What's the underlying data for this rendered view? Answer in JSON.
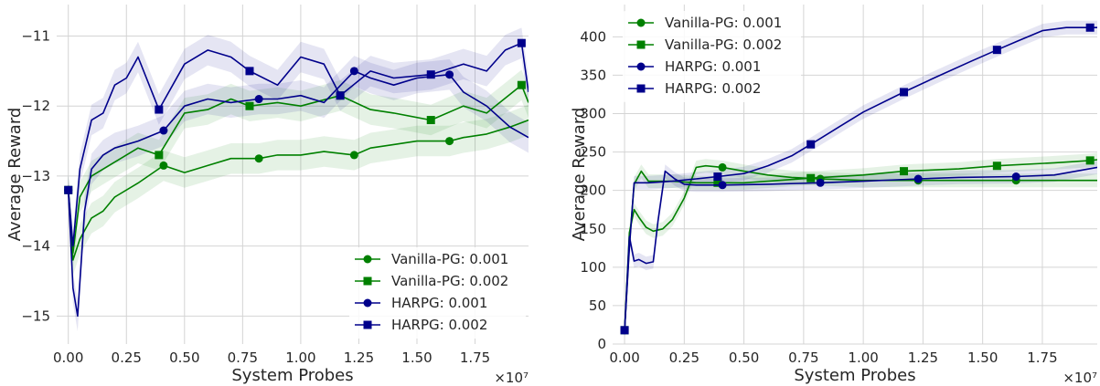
{
  "chart_data": [
    {
      "type": "line",
      "xlabel": "System Probes",
      "ylabel": "Average Reward",
      "x_offset_label": "×10⁷",
      "xlim": [
        -0.05,
        1.98
      ],
      "ylim": [
        -15.4,
        -10.55
      ],
      "xticks": [
        "0.00",
        "0.25",
        "0.50",
        "0.75",
        "1.00",
        "1.25",
        "1.50",
        "1.75"
      ],
      "yticks": [
        "−15",
        "−14",
        "−13",
        "−12",
        "−11"
      ],
      "grid": true,
      "legend_position": "lower-right",
      "series": [
        {
          "name": "Vanilla-PG: 0.001",
          "color": "#008000",
          "marker": "circle",
          "x": [
            0.0,
            0.02,
            0.05,
            0.1,
            0.15,
            0.2,
            0.3,
            0.41,
            0.5,
            0.6,
            0.7,
            0.82,
            0.9,
            1.0,
            1.1,
            1.23,
            1.3,
            1.4,
            1.5,
            1.64,
            1.7,
            1.8,
            1.9,
            1.98
          ],
          "y": [
            -13.2,
            -14.2,
            -13.9,
            -13.6,
            -13.5,
            -13.3,
            -13.1,
            -12.85,
            -12.95,
            -12.85,
            -12.75,
            -12.75,
            -12.7,
            -12.7,
            -12.65,
            -12.7,
            -12.6,
            -12.55,
            -12.5,
            -12.5,
            -12.45,
            -12.4,
            -12.3,
            -12.2
          ],
          "markers_x": [
            0.41,
            0.82,
            1.23,
            1.64
          ],
          "markers_y": [
            -12.85,
            -12.75,
            -12.7,
            -12.5
          ]
        },
        {
          "name": "Vanilla-PG: 0.002",
          "color": "#008000",
          "marker": "square",
          "x": [
            0.0,
            0.02,
            0.05,
            0.1,
            0.2,
            0.3,
            0.39,
            0.5,
            0.6,
            0.7,
            0.78,
            0.9,
            1.0,
            1.17,
            1.3,
            1.4,
            1.56,
            1.7,
            1.8,
            1.95,
            1.98
          ],
          "y": [
            -13.2,
            -14.1,
            -13.3,
            -13.0,
            -12.8,
            -12.6,
            -12.7,
            -12.1,
            -12.05,
            -11.9,
            -12.0,
            -11.95,
            -12.0,
            -11.85,
            -12.05,
            -12.1,
            -12.2,
            -12.0,
            -12.1,
            -11.7,
            -11.95
          ],
          "markers_x": [
            0.39,
            0.78,
            1.17,
            1.56,
            1.95
          ],
          "markers_y": [
            -12.7,
            -12.0,
            -11.85,
            -12.2,
            -11.7
          ]
        },
        {
          "name": "HARPG: 0.001",
          "color": "#00008b",
          "marker": "circle",
          "x": [
            0.0,
            0.02,
            0.04,
            0.07,
            0.1,
            0.15,
            0.2,
            0.3,
            0.41,
            0.5,
            0.6,
            0.7,
            0.82,
            0.9,
            1.0,
            1.1,
            1.23,
            1.3,
            1.4,
            1.5,
            1.64,
            1.7,
            1.8,
            1.9,
            1.98
          ],
          "y": [
            -13.2,
            -14.6,
            -15.0,
            -13.5,
            -12.9,
            -12.7,
            -12.6,
            -12.5,
            -12.35,
            -12.0,
            -11.9,
            -11.95,
            -11.9,
            -11.9,
            -11.85,
            -11.95,
            -11.5,
            -11.6,
            -11.7,
            -11.6,
            -11.55,
            -11.8,
            -12.0,
            -12.3,
            -12.45
          ],
          "markers_x": [
            0.41,
            0.82,
            1.23,
            1.64
          ],
          "markers_y": [
            -12.35,
            -11.9,
            -11.5,
            -11.55
          ]
        },
        {
          "name": "HARPG: 0.002",
          "color": "#00008b",
          "marker": "square",
          "x": [
            0.0,
            0.02,
            0.05,
            0.1,
            0.15,
            0.2,
            0.25,
            0.3,
            0.39,
            0.5,
            0.6,
            0.7,
            0.78,
            0.9,
            1.0,
            1.1,
            1.17,
            1.3,
            1.4,
            1.56,
            1.7,
            1.8,
            1.88,
            1.95,
            1.98
          ],
          "y": [
            -13.2,
            -14.0,
            -12.9,
            -12.2,
            -12.1,
            -11.7,
            -11.6,
            -11.3,
            -12.05,
            -11.4,
            -11.2,
            -11.3,
            -11.5,
            -11.7,
            -11.3,
            -11.4,
            -11.85,
            -11.5,
            -11.6,
            -11.55,
            -11.4,
            -11.5,
            -11.2,
            -11.1,
            -11.8
          ],
          "markers_x": [
            0.39,
            0.78,
            1.17,
            1.56,
            1.95
          ],
          "markers_y": [
            -12.05,
            -11.5,
            -11.85,
            -11.55,
            -11.1
          ]
        }
      ]
    },
    {
      "type": "line",
      "xlabel": "System Probes",
      "ylabel": "Average Reward",
      "x_offset_label": "×10⁷",
      "xlim": [
        -0.05,
        1.98
      ],
      "ylim": [
        0,
        442
      ],
      "xticks": [
        "0.00",
        "0.25",
        "0.50",
        "0.75",
        "1.00",
        "1.25",
        "1.50",
        "1.75"
      ],
      "yticks": [
        "0",
        "50",
        "100",
        "150",
        "200",
        "250",
        "300",
        "350",
        "400"
      ],
      "grid": true,
      "legend_position": "top-left",
      "series": [
        {
          "name": "Vanilla-PG: 0.001",
          "color": "#008000",
          "marker": "circle",
          "x": [
            0.0,
            0.02,
            0.04,
            0.06,
            0.09,
            0.12,
            0.16,
            0.2,
            0.25,
            0.3,
            0.34,
            0.41,
            0.5,
            0.6,
            0.7,
            0.82,
            1.0,
            1.23,
            1.4,
            1.64,
            1.8,
            1.98
          ],
          "y": [
            18,
            145,
            175,
            165,
            152,
            147,
            150,
            162,
            190,
            230,
            232,
            230,
            225,
            220,
            217,
            215,
            213,
            213,
            213,
            213,
            213,
            213
          ],
          "markers_x": [
            0.41,
            0.82,
            1.23,
            1.64
          ],
          "markers_y": [
            230,
            215,
            213,
            213
          ]
        },
        {
          "name": "Vanilla-PG: 0.002",
          "color": "#008000",
          "marker": "square",
          "x": [
            0.0,
            0.02,
            0.04,
            0.07,
            0.1,
            0.2,
            0.3,
            0.39,
            0.5,
            0.6,
            0.78,
            1.0,
            1.17,
            1.4,
            1.56,
            1.8,
            1.95,
            1.98
          ],
          "y": [
            18,
            130,
            208,
            225,
            212,
            212,
            210,
            210,
            210,
            212,
            216,
            220,
            225,
            228,
            232,
            236,
            239,
            240
          ],
          "markers_x": [
            0.39,
            0.78,
            1.17,
            1.56,
            1.95
          ],
          "markers_y": [
            210,
            216,
            225,
            232,
            239
          ]
        },
        {
          "name": "HARPG: 0.001",
          "color": "#00008b",
          "marker": "circle",
          "x": [
            0.0,
            0.02,
            0.04,
            0.06,
            0.09,
            0.12,
            0.14,
            0.17,
            0.21,
            0.25,
            0.3,
            0.41,
            0.6,
            0.82,
            1.0,
            1.23,
            1.4,
            1.64,
            1.8,
            1.98
          ],
          "y": [
            18,
            140,
            108,
            110,
            105,
            107,
            160,
            225,
            215,
            208,
            207,
            207,
            208,
            210,
            212,
            215,
            217,
            218,
            220,
            230
          ],
          "markers_x": [
            0.41,
            0.82,
            1.23,
            1.64
          ],
          "markers_y": [
            207,
            210,
            215,
            218
          ]
        },
        {
          "name": "HARPG: 0.002",
          "color": "#00008b",
          "marker": "square",
          "x": [
            0.0,
            0.02,
            0.04,
            0.1,
            0.2,
            0.3,
            0.39,
            0.5,
            0.6,
            0.7,
            0.78,
            0.9,
            1.0,
            1.17,
            1.3,
            1.45,
            1.56,
            1.65,
            1.75,
            1.85,
            1.95,
            1.98
          ],
          "y": [
            18,
            125,
            210,
            210,
            212,
            215,
            218,
            222,
            232,
            245,
            260,
            283,
            302,
            328,
            347,
            368,
            383,
            395,
            408,
            412,
            412,
            412
          ],
          "markers_x": [
            0.39,
            0.78,
            1.17,
            1.56,
            1.95
          ],
          "markers_y": [
            218,
            260,
            328,
            383,
            412
          ]
        }
      ]
    }
  ]
}
